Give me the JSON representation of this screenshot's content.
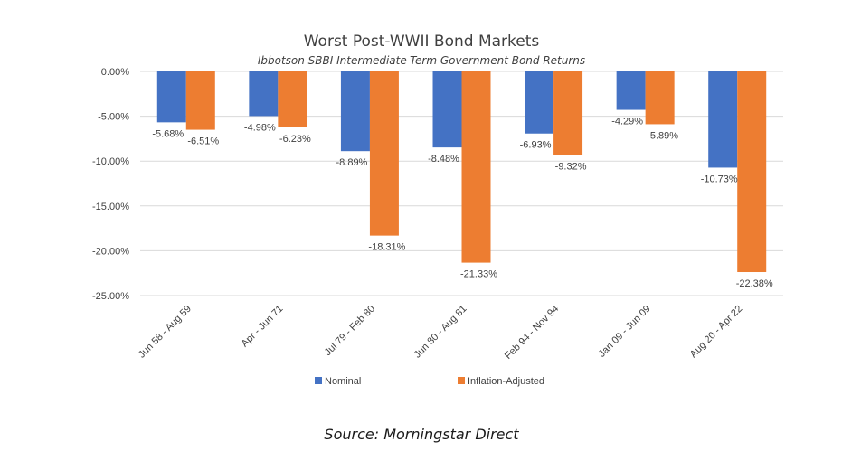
{
  "chart_data": {
    "type": "bar",
    "title": "Worst Post-WWII Bond Markets",
    "subtitle": "Ibbotson SBBI Intermediate-Term Government Bond Returns",
    "categories": [
      "Jun 58 - Aug 59",
      "Apr - Jun 71",
      "Jul 79 - Feb 80",
      "Jun 80 - Aug 81",
      "Feb 94 - Nov 94",
      "Jan 09 - Jun 09",
      "Aug 20 - Apr 22"
    ],
    "series": [
      {
        "name": "Nominal",
        "color": "#4472c4",
        "values": [
          -5.68,
          -4.98,
          -8.89,
          -8.48,
          -6.93,
          -4.29,
          -10.73
        ]
      },
      {
        "name": "Inflation-Adjusted",
        "color": "#ed7d31",
        "values": [
          -6.51,
          -6.23,
          -18.31,
          -21.33,
          -9.32,
          -5.89,
          -22.38
        ]
      }
    ],
    "ylim": [
      -25,
      0
    ],
    "yticks": [
      0,
      -5,
      -10,
      -15,
      -20,
      -25
    ],
    "ytick_labels": [
      "0.00%",
      "-5.00%",
      "-10.00%",
      "-15.00%",
      "-20.00%",
      "-25.00%"
    ],
    "data_labels": [
      [
        "-5.68%",
        "-4.98%",
        "-8.89%",
        "-8.48%",
        "-6.93%",
        "-4.29%",
        "-10.73%"
      ],
      [
        "-6.51%",
        "-6.23%",
        "-18.31%",
        "-21.33%",
        "-9.32%",
        "-5.89%",
        "-22.38%"
      ]
    ],
    "grid": true,
    "legend": "bottom"
  },
  "source": "Source: Morningstar Direct"
}
